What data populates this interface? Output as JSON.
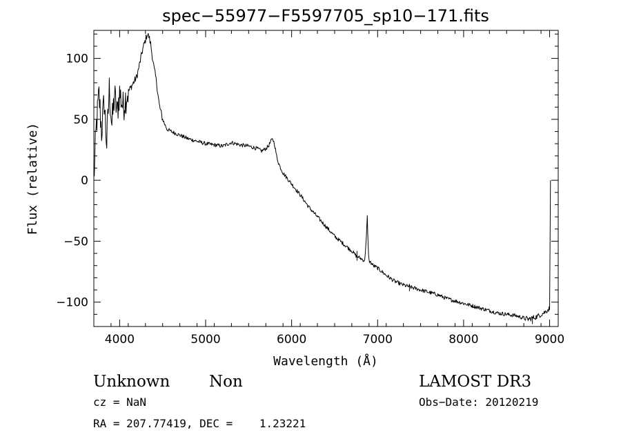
{
  "chart_data": {
    "type": "line",
    "title": "spec−55977−F5597705_sp10−171.fits",
    "xlabel": "Wavelength (Å)",
    "ylabel": "Flux (relative)",
    "xlim": [
      3700,
      9100
    ],
    "ylim": [
      -120,
      123
    ],
    "x_ticks": [
      4000,
      5000,
      6000,
      7000,
      8000,
      9000
    ],
    "x_tick_labels": [
      "4000",
      "5000",
      "6000",
      "7000",
      "8000",
      "9000"
    ],
    "y_ticks": [
      -100,
      -50,
      0,
      50,
      100
    ],
    "y_tick_labels": [
      "−100",
      "−50",
      "0",
      "50",
      "100"
    ],
    "series": [
      {
        "name": "flux",
        "x": [
          3700,
          3730,
          3760,
          3790,
          3820,
          3850,
          3880,
          3910,
          3940,
          3970,
          4000,
          4040,
          4080,
          4120,
          4160,
          4200,
          4240,
          4270,
          4300,
          4320,
          4340,
          4360,
          4380,
          4400,
          4430,
          4460,
          4500,
          4550,
          4600,
          4700,
          4800,
          4900,
          5000,
          5100,
          5200,
          5300,
          5350,
          5400,
          5500,
          5600,
          5650,
          5700,
          5730,
          5760,
          5780,
          5800,
          5830,
          5860,
          5900,
          6000,
          6100,
          6200,
          6300,
          6400,
          6500,
          6600,
          6700,
          6750,
          6800,
          6850,
          6870,
          6880,
          6890,
          6900,
          6950,
          7000,
          7100,
          7200,
          7300,
          7400,
          7500,
          7600,
          7700,
          7800,
          7900,
          8000,
          8100,
          8200,
          8300,
          8400,
          8500,
          8600,
          8700,
          8750,
          8800,
          8850,
          8900,
          8950,
          9000,
          9010
        ],
        "y": [
          0,
          45,
          70,
          40,
          65,
          30,
          75,
          45,
          70,
          55,
          72,
          60,
          70,
          75,
          80,
          85,
          98,
          108,
          115,
          120,
          118,
          112,
          102,
          92,
          80,
          62,
          50,
          42,
          40,
          37,
          34,
          32,
          30,
          29,
          28,
          31,
          30,
          29,
          28,
          26,
          24,
          26,
          28,
          32,
          34,
          30,
          18,
          12,
          6,
          -3,
          -12,
          -22,
          -30,
          -38,
          -46,
          -52,
          -58,
          -62,
          -64,
          -66,
          -45,
          -30,
          -55,
          -66,
          -70,
          -72,
          -78,
          -83,
          -86,
          -88,
          -90,
          -92,
          -94,
          -97,
          -99,
          -101,
          -103,
          -105,
          -107,
          -109,
          -110,
          -111,
          -113,
          -114,
          -113,
          -112,
          -110,
          -108,
          -105,
          0
        ]
      }
    ],
    "absorption_lines": [
      {
        "x": 6760,
        "y_top": -58,
        "y_bottom": -66
      },
      {
        "x": 7370,
        "y_top": -85,
        "y_bottom": -91
      },
      {
        "x": 8800,
        "y_top": -112,
        "y_bottom": -118
      }
    ]
  },
  "info": {
    "object_class": "Unknown",
    "object_subclass": "Non",
    "survey": "LAMOST DR3",
    "redshift_line": "cz = NaN",
    "obs_date_line": "Obs−Date: 20120219",
    "coords_line": "RA = 207.77419, DEC =    1.23221"
  }
}
